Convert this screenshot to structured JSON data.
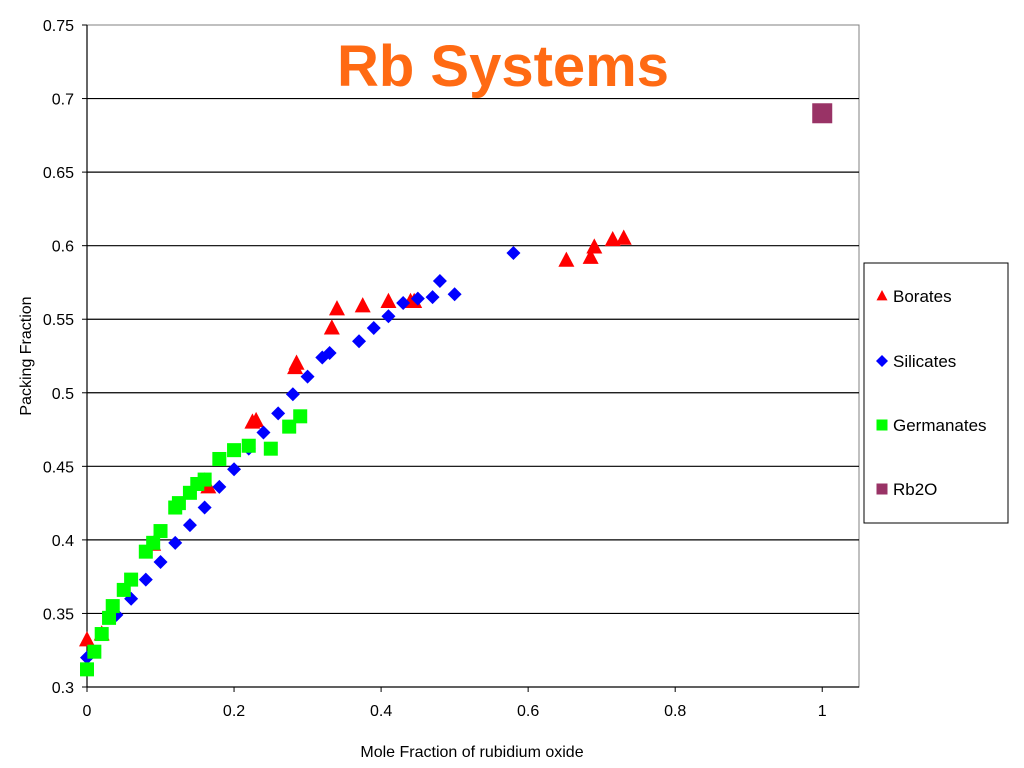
{
  "chart_data": {
    "type": "scatter",
    "title": "Rb Systems",
    "title_color": "#ff6a13",
    "xlabel": "Mole Fraction of rubidium oxide",
    "ylabel": "Packing Fraction",
    "xlim": [
      0,
      1.05
    ],
    "ylim": [
      0.3,
      0.75
    ],
    "xticks": [
      0,
      0.2,
      0.4,
      0.6,
      0.8,
      1
    ],
    "xtick_labels": [
      "0",
      "0.2",
      "0.4",
      "0.6",
      "0.8",
      "1"
    ],
    "yticks": [
      0.3,
      0.35,
      0.4,
      0.45,
      0.5,
      0.55,
      0.6,
      0.65,
      0.7,
      0.75
    ],
    "ytick_labels": [
      "0.3",
      "0.35",
      "0.4",
      "0.45",
      "0.5",
      "0.55",
      "0.6",
      "0.65",
      "0.7",
      "0.75"
    ],
    "grid": "horizontal",
    "legend_position": "right",
    "series": [
      {
        "name": "Borates",
        "marker": "triangle",
        "color": "#ff0000",
        "points": [
          [
            0,
            0.332
          ],
          [
            0.02,
            0.336
          ],
          [
            0.09,
            0.397
          ],
          [
            0.16,
            0.44
          ],
          [
            0.165,
            0.436
          ],
          [
            0.225,
            0.48
          ],
          [
            0.23,
            0.481
          ],
          [
            0.283,
            0.517
          ],
          [
            0.285,
            0.52
          ],
          [
            0.333,
            0.544
          ],
          [
            0.34,
            0.557
          ],
          [
            0.375,
            0.559
          ],
          [
            0.41,
            0.562
          ],
          [
            0.44,
            0.562
          ],
          [
            0.445,
            0.562
          ],
          [
            0.652,
            0.59
          ],
          [
            0.685,
            0.592
          ],
          [
            0.69,
            0.599
          ],
          [
            0.715,
            0.604
          ],
          [
            0.73,
            0.605
          ]
        ]
      },
      {
        "name": "Silicates",
        "marker": "diamond",
        "color": "#0000ff",
        "points": [
          [
            0,
            0.32
          ],
          [
            0.04,
            0.349
          ],
          [
            0.06,
            0.36
          ],
          [
            0.08,
            0.373
          ],
          [
            0.1,
            0.385
          ],
          [
            0.12,
            0.398
          ],
          [
            0.14,
            0.41
          ],
          [
            0.16,
            0.422
          ],
          [
            0.18,
            0.436
          ],
          [
            0.2,
            0.448
          ],
          [
            0.22,
            0.462
          ],
          [
            0.24,
            0.473
          ],
          [
            0.26,
            0.486
          ],
          [
            0.28,
            0.499
          ],
          [
            0.3,
            0.511
          ],
          [
            0.32,
            0.524
          ],
          [
            0.33,
            0.527
          ],
          [
            0.37,
            0.535
          ],
          [
            0.39,
            0.544
          ],
          [
            0.41,
            0.552
          ],
          [
            0.43,
            0.561
          ],
          [
            0.45,
            0.564
          ],
          [
            0.47,
            0.565
          ],
          [
            0.48,
            0.576
          ],
          [
            0.5,
            0.567
          ],
          [
            0.58,
            0.595
          ]
        ]
      },
      {
        "name": "Germanates",
        "marker": "square",
        "color": "#00ff00",
        "points": [
          [
            0,
            0.312
          ],
          [
            0.01,
            0.324
          ],
          [
            0.02,
            0.336
          ],
          [
            0.03,
            0.347
          ],
          [
            0.035,
            0.355
          ],
          [
            0.05,
            0.366
          ],
          [
            0.06,
            0.373
          ],
          [
            0.08,
            0.392
          ],
          [
            0.09,
            0.398
          ],
          [
            0.1,
            0.406
          ],
          [
            0.12,
            0.422
          ],
          [
            0.125,
            0.425
          ],
          [
            0.14,
            0.432
          ],
          [
            0.15,
            0.438
          ],
          [
            0.16,
            0.441
          ],
          [
            0.18,
            0.455
          ],
          [
            0.2,
            0.461
          ],
          [
            0.22,
            0.464
          ],
          [
            0.25,
            0.462
          ],
          [
            0.275,
            0.477
          ],
          [
            0.29,
            0.484
          ]
        ]
      },
      {
        "name": "Rb2O",
        "marker": "square",
        "color": "#993366",
        "points": [
          [
            1,
            0.69
          ]
        ]
      }
    ]
  }
}
